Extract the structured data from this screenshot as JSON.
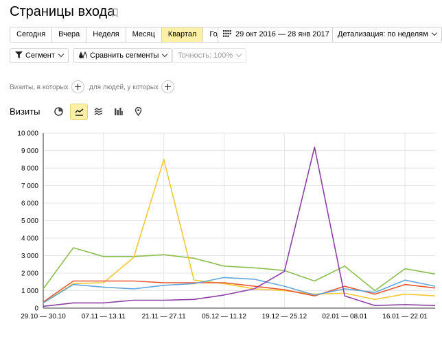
{
  "page": {
    "title": "Страницы входа"
  },
  "period_tabs": [
    "Сегодня",
    "Вчера",
    "Неделя",
    "Месяц",
    "Квартал",
    "Год"
  ],
  "period_active": 4,
  "date_range": "29 окт 2016 — 28 янв 2017",
  "detail_label": "Детализация: по неделям",
  "segment_label": "Сегмент",
  "compare_label": "Сравнить сегменты",
  "accuracy_label": "Точность: 100%",
  "filter": {
    "visits_text": "Визиты, в которых",
    "people_text": "для людей, у которых"
  },
  "section_title": "Визиты",
  "view_icons": [
    "pie-chart-icon",
    "line-chart-icon",
    "area-chart-icon",
    "bar-chart-icon",
    "map-pin-icon"
  ],
  "colors": {
    "accent": "#fff0a8",
    "axis": "#333333",
    "grid": "#e6e6e6"
  },
  "chart_data": {
    "type": "line",
    "ylim": [
      0,
      10000
    ],
    "y_ticks": [
      "0",
      "1 000",
      "2 000",
      "3 000",
      "4 000",
      "5 000",
      "6 000",
      "7 000",
      "8 000",
      "9 000",
      "10 000"
    ],
    "x_labels": [
      "29.10 — 30.10",
      "07.11 — 13.11",
      "21.11 — 27.11",
      "05.12 — 11.12",
      "19.12 — 25.12",
      "02.01 — 08.01",
      "16.01 — 22.01"
    ],
    "series": [
      {
        "color": "#8bbd4f",
        "values": [
          1100,
          3450,
          2950,
          2950,
          3050,
          2850,
          2400,
          2300,
          2150,
          1550,
          2400,
          1000,
          2250,
          1950
        ]
      },
      {
        "color": "#f4c832",
        "values": [
          300,
          1400,
          1450,
          2900,
          8500,
          1600,
          1400,
          1100,
          1000,
          800,
          850,
          500,
          800,
          700
        ]
      },
      {
        "color": "#e8562f",
        "values": [
          350,
          1550,
          1550,
          1550,
          1450,
          1450,
          1450,
          1250,
          1050,
          700,
          1250,
          800,
          1350,
          1150
        ]
      },
      {
        "color": "#63a6dc",
        "values": [
          300,
          1350,
          1200,
          1100,
          1300,
          1400,
          1750,
          1650,
          1250,
          750,
          1100,
          900,
          1600,
          1250
        ]
      },
      {
        "color": "#8d3fa5",
        "values": [
          100,
          300,
          300,
          450,
          450,
          500,
          750,
          1100,
          2100,
          9200,
          700,
          150,
          200,
          150
        ]
      }
    ]
  }
}
